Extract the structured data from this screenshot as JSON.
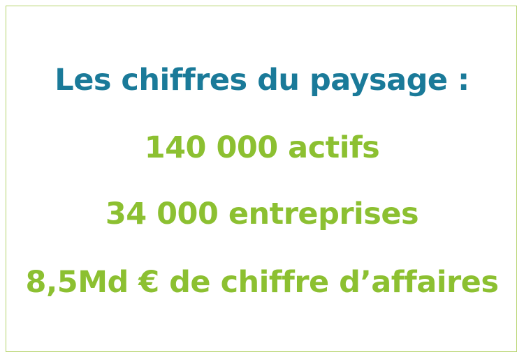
{
  "title": "Les chiffres du paysage :",
  "stats": [
    "140 000 actifs",
    "34 000 entreprises",
    "8,5Md € de chiffre d’affaires"
  ],
  "colors": {
    "title": "#1a7a99",
    "stats": "#8cc031",
    "border": "#b5d36b"
  }
}
